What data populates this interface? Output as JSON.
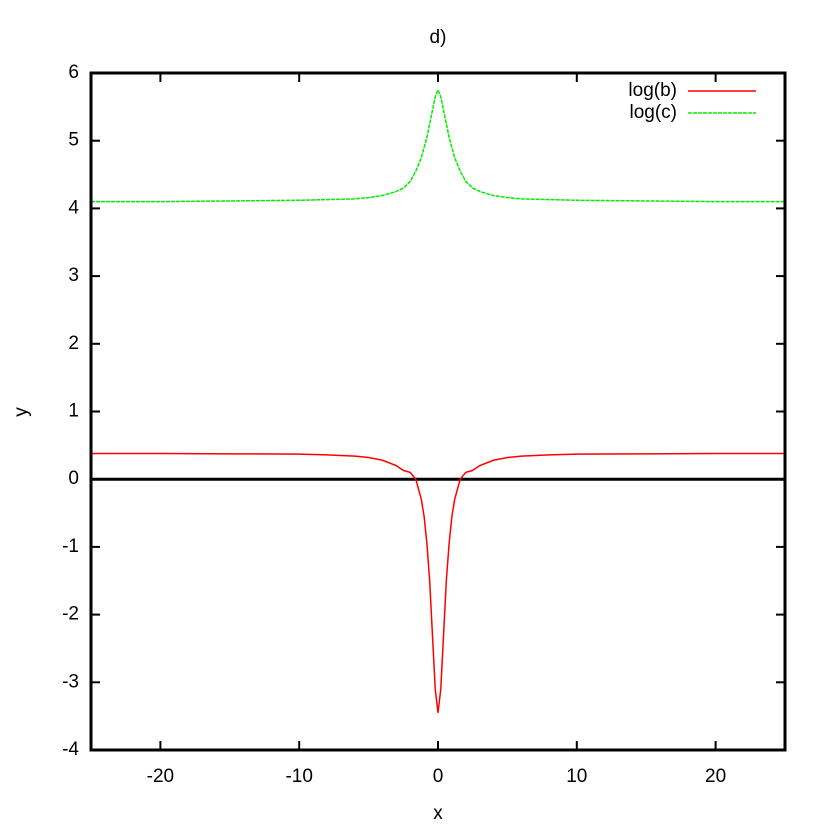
{
  "chart_data": {
    "type": "line",
    "title": "d)",
    "x_label": "x",
    "y_label": "y",
    "x": [
      -25,
      -20,
      -15,
      -10,
      -8,
      -6,
      -5,
      -4,
      -3,
      -2.5,
      -2,
      -1.6,
      -1.2,
      -1,
      -0.8,
      -0.6,
      -0.4,
      -0.2,
      0,
      0.2,
      0.4,
      0.6,
      0.8,
      1,
      1.2,
      1.6,
      2,
      2.5,
      3,
      4,
      5,
      6,
      8,
      10,
      15,
      20,
      25
    ],
    "series": [
      {
        "name": "log(b)",
        "color": "#ff0000",
        "dashed": false,
        "values": [
          0.38,
          0.38,
          0.375,
          0.37,
          0.36,
          0.34,
          0.32,
          0.28,
          0.2,
          0.13,
          0.1,
          0,
          -0.3,
          -0.55,
          -0.95,
          -1.5,
          -2.3,
          -3.1,
          -3.45,
          -3.1,
          -2.3,
          -1.5,
          -0.95,
          -0.55,
          -0.3,
          0,
          0.1,
          0.13,
          0.2,
          0.28,
          0.32,
          0.34,
          0.36,
          0.37,
          0.375,
          0.38,
          0.38
        ]
      },
      {
        "name": "log(c)",
        "color": "#00ee00",
        "dashed": true,
        "values": [
          4.1,
          4.1,
          4.11,
          4.12,
          4.13,
          4.14,
          4.16,
          4.19,
          4.25,
          4.3,
          4.4,
          4.55,
          4.75,
          4.9,
          5.05,
          5.25,
          5.45,
          5.65,
          5.75,
          5.65,
          5.45,
          5.25,
          5.05,
          4.9,
          4.75,
          4.55,
          4.4,
          4.3,
          4.25,
          4.19,
          4.16,
          4.14,
          4.13,
          4.12,
          4.11,
          4.1,
          4.1
        ]
      }
    ],
    "xlim": [
      -25,
      25
    ],
    "ylim": [
      -4,
      6
    ],
    "xticks": [
      -20,
      -10,
      0,
      10,
      20
    ],
    "yticks": [
      -4,
      -3,
      -2,
      -1,
      0,
      1,
      2,
      3,
      4,
      5,
      6
    ],
    "zero_axis": true,
    "legend": "top-right"
  }
}
